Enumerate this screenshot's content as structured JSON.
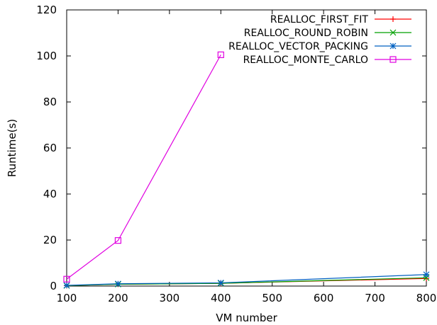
{
  "chart_data": {
    "type": "line",
    "title": "",
    "xlabel": "VM number",
    "ylabel": "Runtime(s)",
    "xlim": [
      100,
      800
    ],
    "ylim": [
      0,
      120
    ],
    "xticks": [
      100,
      200,
      300,
      400,
      500,
      600,
      700,
      800
    ],
    "yticks": [
      0,
      20,
      40,
      60,
      80,
      100,
      120
    ],
    "grid": false,
    "legend_position": "top-right",
    "series": [
      {
        "name": "REALLOC_FIRST_FIT",
        "color": "#ff0000",
        "marker": "plus",
        "x": [
          100,
          200,
          400,
          800
        ],
        "y": [
          0.2,
          0.8,
          1.2,
          3.3
        ]
      },
      {
        "name": "REALLOC_ROUND_ROBIN",
        "color": "#00a000",
        "marker": "cross",
        "x": [
          100,
          200,
          400,
          800
        ],
        "y": [
          0.2,
          0.8,
          1.2,
          3.6
        ]
      },
      {
        "name": "REALLOC_VECTOR_PACKING",
        "color": "#0060c0",
        "marker": "star",
        "x": [
          100,
          200,
          400,
          800
        ],
        "y": [
          0.3,
          1.0,
          1.4,
          5.0
        ]
      },
      {
        "name": "REALLOC_MONTE_CARLO",
        "color": "#e000e0",
        "marker": "square",
        "x": [
          100,
          200,
          400
        ],
        "y": [
          3.0,
          19.8,
          100.5
        ]
      }
    ]
  }
}
